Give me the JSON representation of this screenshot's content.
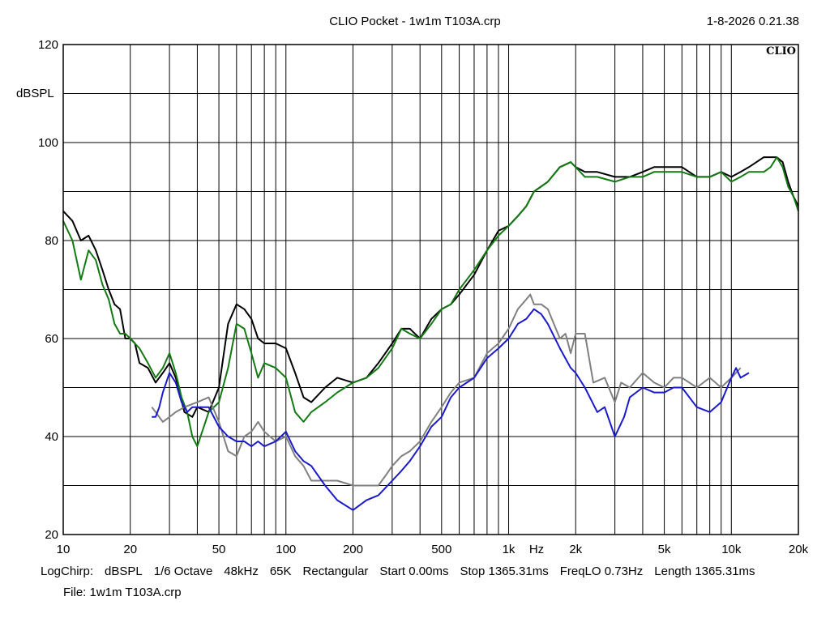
{
  "header": {
    "title": "CLIO Pocket - 1w1m  T103A.crp",
    "datetime": "1-8-2026 0.21.38",
    "logo": "CLIO"
  },
  "settings": [
    "LogChirp:",
    "dBSPL",
    "1/6 Octave",
    "48kHz",
    "65K",
    "Rectangular",
    "Start 0.00ms",
    "Stop 1365.31ms",
    "FreqLO 0.73Hz",
    "Length 1365.31ms"
  ],
  "file": "File: 1w1m  T103A.crp",
  "chart_data": {
    "type": "line",
    "xscale": "log",
    "xlim": [
      10,
      20000
    ],
    "ylim": [
      20,
      120
    ],
    "ylabel": "dBSPL",
    "xlabel": "Hz",
    "grid": true,
    "x_ticks": [
      {
        "v": 10,
        "l": "10"
      },
      {
        "v": 20,
        "l": "20"
      },
      {
        "v": 50,
        "l": "50"
      },
      {
        "v": 100,
        "l": "100"
      },
      {
        "v": 200,
        "l": "200"
      },
      {
        "v": 500,
        "l": "500"
      },
      {
        "v": 1000,
        "l": "1k"
      },
      {
        "v": 2000,
        "l": "2k"
      },
      {
        "v": 5000,
        "l": "5k"
      },
      {
        "v": 10000,
        "l": "10k"
      },
      {
        "v": 20000,
        "l": "20k"
      }
    ],
    "y_ticks": [
      {
        "v": 20,
        "l": "20"
      },
      {
        "v": 40,
        "l": "40"
      },
      {
        "v": 60,
        "l": "60"
      },
      {
        "v": 80,
        "l": "80"
      },
      {
        "v": 100,
        "l": "100"
      },
      {
        "v": 120,
        "l": "120"
      }
    ],
    "colors": {
      "black": "#000000",
      "green": "#137a13",
      "gray": "#808080",
      "blue": "#1a1acc"
    },
    "series": [
      {
        "color": "#000000",
        "points": [
          [
            10,
            86
          ],
          [
            11,
            84
          ],
          [
            12,
            80
          ],
          [
            13,
            81
          ],
          [
            14,
            78
          ],
          [
            15,
            74
          ],
          [
            16,
            70
          ],
          [
            17,
            67
          ],
          [
            18,
            66
          ],
          [
            19,
            60
          ],
          [
            20,
            60
          ],
          [
            21,
            59
          ],
          [
            22,
            55
          ],
          [
            24,
            54
          ],
          [
            26,
            51
          ],
          [
            28,
            53
          ],
          [
            30,
            55
          ],
          [
            32,
            52
          ],
          [
            35,
            45
          ],
          [
            38,
            44
          ],
          [
            40,
            46
          ],
          [
            45,
            45
          ],
          [
            50,
            50
          ],
          [
            55,
            63
          ],
          [
            60,
            67
          ],
          [
            65,
            66
          ],
          [
            70,
            64
          ],
          [
            75,
            60
          ],
          [
            80,
            59
          ],
          [
            90,
            59
          ],
          [
            100,
            58
          ],
          [
            110,
            53
          ],
          [
            120,
            48
          ],
          [
            130,
            47
          ],
          [
            150,
            50
          ],
          [
            170,
            52
          ],
          [
            200,
            51
          ],
          [
            230,
            52
          ],
          [
            260,
            55
          ],
          [
            300,
            59
          ],
          [
            330,
            62
          ],
          [
            360,
            62
          ],
          [
            400,
            60
          ],
          [
            450,
            64
          ],
          [
            500,
            66
          ],
          [
            550,
            67
          ],
          [
            600,
            69
          ],
          [
            700,
            73
          ],
          [
            800,
            78
          ],
          [
            900,
            82
          ],
          [
            1000,
            83
          ],
          [
            1100,
            85
          ],
          [
            1200,
            87
          ],
          [
            1300,
            90
          ],
          [
            1500,
            92
          ],
          [
            1700,
            95
          ],
          [
            1900,
            96
          ],
          [
            2000,
            95
          ],
          [
            2200,
            94
          ],
          [
            2500,
            94
          ],
          [
            3000,
            93
          ],
          [
            3500,
            93
          ],
          [
            4000,
            94
          ],
          [
            4500,
            95
          ],
          [
            5000,
            95
          ],
          [
            5500,
            95
          ],
          [
            6000,
            95
          ],
          [
            7000,
            93
          ],
          [
            8000,
            93
          ],
          [
            9000,
            94
          ],
          [
            10000,
            93
          ],
          [
            11000,
            94
          ],
          [
            12000,
            95
          ],
          [
            14000,
            97
          ],
          [
            16000,
            97
          ],
          [
            17000,
            96
          ],
          [
            18000,
            92
          ],
          [
            19000,
            89
          ],
          [
            20000,
            87
          ]
        ]
      },
      {
        "color": "#137a13",
        "points": [
          [
            10,
            84
          ],
          [
            11,
            80
          ],
          [
            12,
            72
          ],
          [
            12.5,
            75
          ],
          [
            13,
            78
          ],
          [
            14,
            76
          ],
          [
            15,
            71
          ],
          [
            16,
            68
          ],
          [
            17,
            63
          ],
          [
            18,
            61
          ],
          [
            19,
            61
          ],
          [
            20,
            60
          ],
          [
            22,
            58
          ],
          [
            24,
            55
          ],
          [
            26,
            52
          ],
          [
            28,
            54
          ],
          [
            30,
            57
          ],
          [
            32,
            53
          ],
          [
            34,
            48
          ],
          [
            36,
            45
          ],
          [
            38,
            40
          ],
          [
            40,
            38
          ],
          [
            45,
            45
          ],
          [
            50,
            47
          ],
          [
            55,
            54
          ],
          [
            60,
            63
          ],
          [
            65,
            62
          ],
          [
            70,
            57
          ],
          [
            75,
            52
          ],
          [
            80,
            55
          ],
          [
            90,
            54
          ],
          [
            100,
            52
          ],
          [
            110,
            45
          ],
          [
            120,
            43
          ],
          [
            130,
            45
          ],
          [
            150,
            47
          ],
          [
            170,
            49
          ],
          [
            200,
            51
          ],
          [
            230,
            52
          ],
          [
            260,
            54
          ],
          [
            300,
            58
          ],
          [
            330,
            62
          ],
          [
            360,
            61
          ],
          [
            400,
            60
          ],
          [
            450,
            63
          ],
          [
            500,
            66
          ],
          [
            550,
            67
          ],
          [
            600,
            70
          ],
          [
            700,
            74
          ],
          [
            800,
            78
          ],
          [
            900,
            81
          ],
          [
            1000,
            83
          ],
          [
            1100,
            85
          ],
          [
            1200,
            87
          ],
          [
            1300,
            90
          ],
          [
            1500,
            92
          ],
          [
            1700,
            95
          ],
          [
            1900,
            96
          ],
          [
            2000,
            95
          ],
          [
            2200,
            93
          ],
          [
            2500,
            93
          ],
          [
            3000,
            92
          ],
          [
            3500,
            93
          ],
          [
            4000,
            93
          ],
          [
            4500,
            94
          ],
          [
            5000,
            94
          ],
          [
            6000,
            94
          ],
          [
            7000,
            93
          ],
          [
            8000,
            93
          ],
          [
            9000,
            94
          ],
          [
            10000,
            92
          ],
          [
            11000,
            93
          ],
          [
            12000,
            94
          ],
          [
            14000,
            94
          ],
          [
            15000,
            95
          ],
          [
            16000,
            97
          ],
          [
            17000,
            95
          ],
          [
            18000,
            91
          ],
          [
            19000,
            89
          ],
          [
            20000,
            86
          ]
        ]
      },
      {
        "color": "#808080",
        "points": [
          [
            25,
            46
          ],
          [
            26,
            45
          ],
          [
            28,
            43
          ],
          [
            30,
            44
          ],
          [
            32,
            45
          ],
          [
            35,
            46
          ],
          [
            40,
            47
          ],
          [
            45,
            48
          ],
          [
            50,
            43
          ],
          [
            55,
            37
          ],
          [
            60,
            36
          ],
          [
            65,
            40
          ],
          [
            70,
            41
          ],
          [
            75,
            43
          ],
          [
            80,
            41
          ],
          [
            90,
            39
          ],
          [
            100,
            40
          ],
          [
            110,
            36
          ],
          [
            120,
            34
          ],
          [
            130,
            31
          ],
          [
            150,
            31
          ],
          [
            170,
            31
          ],
          [
            200,
            30
          ],
          [
            230,
            30
          ],
          [
            260,
            30
          ],
          [
            280,
            32
          ],
          [
            300,
            34
          ],
          [
            330,
            36
          ],
          [
            360,
            37
          ],
          [
            400,
            39
          ],
          [
            450,
            43
          ],
          [
            500,
            46
          ],
          [
            550,
            49
          ],
          [
            600,
            51
          ],
          [
            700,
            52
          ],
          [
            800,
            57
          ],
          [
            900,
            59
          ],
          [
            1000,
            62
          ],
          [
            1100,
            66
          ],
          [
            1200,
            68
          ],
          [
            1250,
            69
          ],
          [
            1300,
            67
          ],
          [
            1400,
            67
          ],
          [
            1500,
            66
          ],
          [
            1700,
            60
          ],
          [
            1800,
            61
          ],
          [
            1900,
            57
          ],
          [
            2000,
            61
          ],
          [
            2200,
            61
          ],
          [
            2400,
            51
          ],
          [
            2700,
            52
          ],
          [
            3000,
            47
          ],
          [
            3200,
            51
          ],
          [
            3500,
            50
          ],
          [
            4000,
            53
          ],
          [
            4500,
            51
          ],
          [
            5000,
            50
          ],
          [
            5500,
            52
          ],
          [
            6000,
            52
          ],
          [
            7000,
            50
          ],
          [
            8000,
            52
          ],
          [
            9000,
            50
          ],
          [
            10000,
            52
          ],
          [
            11000,
            54
          ]
        ]
      },
      {
        "color": "#1a1acc",
        "points": [
          [
            25,
            44
          ],
          [
            26,
            44
          ],
          [
            27,
            46
          ],
          [
            28,
            49
          ],
          [
            30,
            53
          ],
          [
            32,
            51
          ],
          [
            34,
            47
          ],
          [
            36,
            45
          ],
          [
            38,
            46
          ],
          [
            40,
            46
          ],
          [
            45,
            46
          ],
          [
            50,
            42
          ],
          [
            55,
            40
          ],
          [
            60,
            39
          ],
          [
            65,
            39
          ],
          [
            70,
            38
          ],
          [
            75,
            39
          ],
          [
            80,
            38
          ],
          [
            90,
            39
          ],
          [
            100,
            41
          ],
          [
            110,
            37
          ],
          [
            120,
            35
          ],
          [
            130,
            34
          ],
          [
            150,
            30
          ],
          [
            170,
            27
          ],
          [
            200,
            25
          ],
          [
            230,
            27
          ],
          [
            260,
            28
          ],
          [
            300,
            31
          ],
          [
            330,
            33
          ],
          [
            360,
            35
          ],
          [
            400,
            38
          ],
          [
            450,
            42
          ],
          [
            500,
            44
          ],
          [
            550,
            48
          ],
          [
            600,
            50
          ],
          [
            700,
            52
          ],
          [
            800,
            56
          ],
          [
            900,
            58
          ],
          [
            1000,
            60
          ],
          [
            1100,
            63
          ],
          [
            1200,
            64
          ],
          [
            1300,
            66
          ],
          [
            1400,
            65
          ],
          [
            1500,
            63
          ],
          [
            1700,
            58
          ],
          [
            1900,
            54
          ],
          [
            2000,
            53
          ],
          [
            2200,
            50
          ],
          [
            2500,
            45
          ],
          [
            2700,
            46
          ],
          [
            3000,
            40
          ],
          [
            3300,
            44
          ],
          [
            3500,
            48
          ],
          [
            4000,
            50
          ],
          [
            4500,
            49
          ],
          [
            5000,
            49
          ],
          [
            5500,
            50
          ],
          [
            6000,
            50
          ],
          [
            7000,
            46
          ],
          [
            8000,
            45
          ],
          [
            9000,
            47
          ],
          [
            10000,
            52
          ],
          [
            10500,
            54
          ],
          [
            11000,
            52
          ],
          [
            12000,
            53
          ]
        ]
      }
    ]
  }
}
